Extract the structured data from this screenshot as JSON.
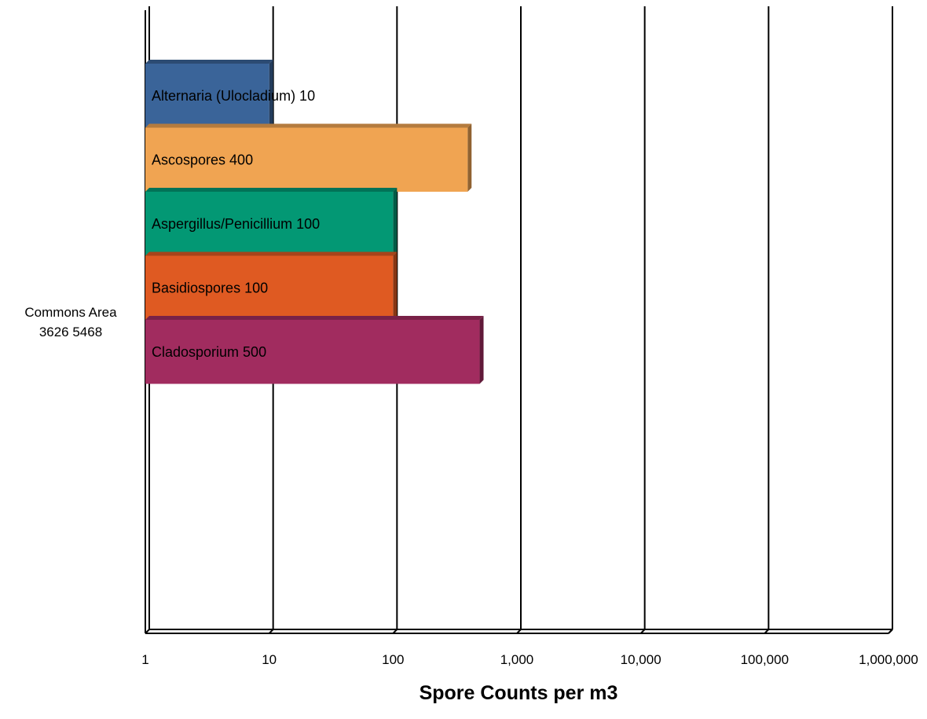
{
  "chart_data": {
    "type": "bar",
    "orientation": "horizontal",
    "xscale": "log",
    "xlim": [
      1,
      1000000
    ],
    "xticks": [
      "1",
      "10",
      "100",
      "1,000",
      "10,000",
      "100,000",
      "1,000,000"
    ],
    "xlabel": "Spore Counts per m3",
    "category_lines": [
      "Commons Area",
      "3626 5468"
    ],
    "grid": true,
    "series": [
      {
        "label": "Alternaria (Ulocladium) 10",
        "value": 10,
        "color": "#3a6499"
      },
      {
        "label": "Ascospores 400",
        "value": 400,
        "color": "#f0a452"
      },
      {
        "label": "Aspergillus/Penicillium 100",
        "value": 100,
        "color": "#039874"
      },
      {
        "label": "Basidiospores 100",
        "value": 100,
        "color": "#df5a22"
      },
      {
        "label": "Cladosporium 500",
        "value": 500,
        "color": "#a12c5f"
      }
    ]
  }
}
